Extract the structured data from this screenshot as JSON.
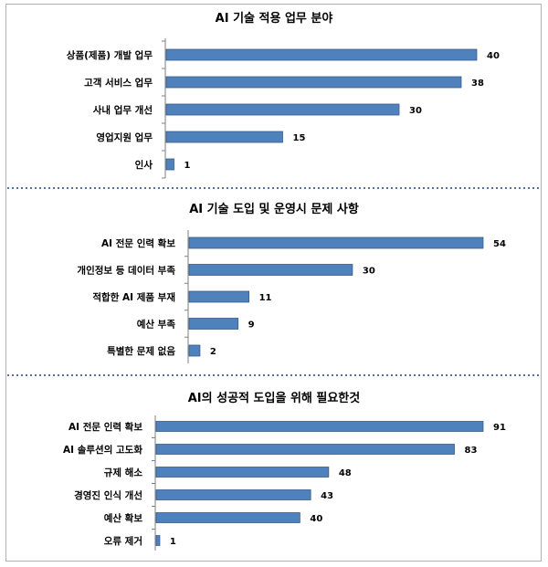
{
  "colors": {
    "bar": "#4f81bd",
    "bar_stroke": "#385d8a",
    "axis": "#7f7f7f",
    "divider": "#1f3f7f"
  },
  "chart_data": [
    {
      "type": "bar",
      "orientation": "horizontal",
      "title": "AI 기술 적용 업무 분야",
      "categories": [
        "상품(제품) 개발 업무",
        "고객 서비스 업무",
        "사내 업무 개선",
        "영업지원 업무",
        "인사"
      ],
      "values": [
        40,
        38,
        30,
        15,
        1
      ],
      "xlim": [
        0,
        45
      ]
    },
    {
      "type": "bar",
      "orientation": "horizontal",
      "title": "AI 기술 도입 및 운영시 문제 사항",
      "categories": [
        "AI 전문 인력 확보",
        "개인정보 등 데이터 부족",
        "적합한 AI 제품 부재",
        "예산 부족",
        "특별한 문제 없음"
      ],
      "values": [
        54,
        30,
        11,
        9,
        2
      ],
      "xlim": [
        0,
        60
      ]
    },
    {
      "type": "bar",
      "orientation": "horizontal",
      "title": "AI의 성공적 도입을 위해 필요한것",
      "categories": [
        "AI 전문 인력 확보",
        "AI 솔루션의 고도화",
        "규제 해소",
        "경영진 인식 개선",
        "예산 확보",
        "오류 제거"
      ],
      "values": [
        91,
        83,
        48,
        43,
        40,
        1
      ],
      "xlim": [
        0,
        101
      ]
    }
  ]
}
